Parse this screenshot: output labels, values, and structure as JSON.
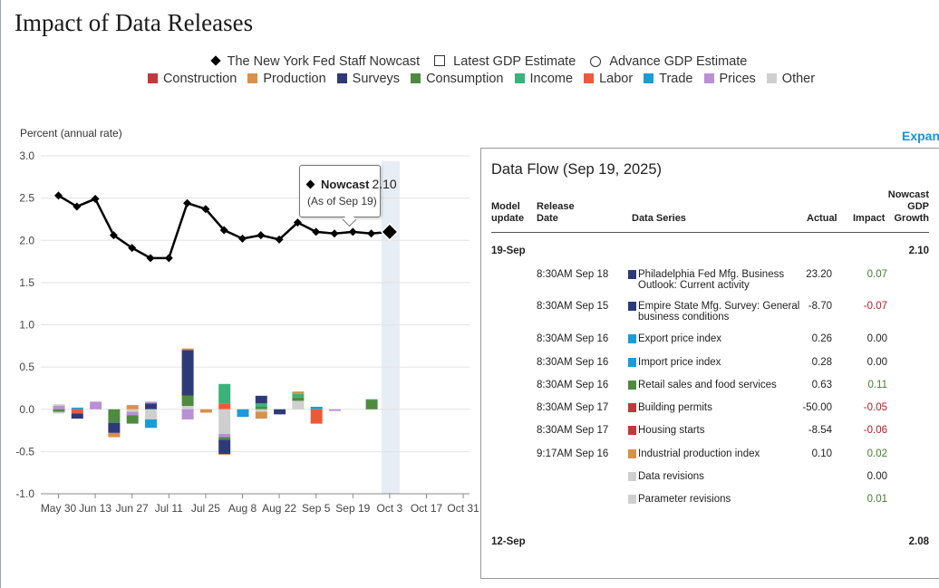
{
  "page": {
    "title": "Impact of Data Releases",
    "expand_label": "Expanc"
  },
  "legend": {
    "series": [
      {
        "label": "The New York Fed Staff Nowcast",
        "icon": "diamond-icon"
      },
      {
        "label": "Latest GDP Estimate",
        "icon": "square-icon"
      },
      {
        "label": "Advance GDP Estimate",
        "icon": "circle-icon"
      }
    ],
    "categories": [
      {
        "label": "Construction",
        "color": "#c0393b"
      },
      {
        "label": "Production",
        "color": "#d9904a"
      },
      {
        "label": "Surveys",
        "color": "#2e3a78"
      },
      {
        "label": "Consumption",
        "color": "#4f8a3f"
      },
      {
        "label": "Income",
        "color": "#3ab27a"
      },
      {
        "label": "Labor",
        "color": "#ec5a3a"
      },
      {
        "label": "Trade",
        "color": "#1b9bd7"
      },
      {
        "label": "Prices",
        "color": "#b98fd6"
      },
      {
        "label": "Other",
        "color": "#cfcfcf"
      }
    ]
  },
  "chart_data": {
    "type": "line+stacked-bar",
    "ylabel": "Percent (annual rate)",
    "ylim": [
      -1.0,
      3.0
    ],
    "yticks": [
      "3.0",
      "2.5",
      "2.0",
      "1.5",
      "1.0",
      "0.5",
      "0.0",
      "-0.5",
      "-1.0"
    ],
    "ytick_values": [
      3.0,
      2.5,
      2.0,
      1.5,
      1.0,
      0.5,
      0.0,
      -0.5,
      -1.0
    ],
    "xlabels": [
      "May 30",
      "Jun 13",
      "Jun 27",
      "Jul 11",
      "Jul 25",
      "Aug 8",
      "Aug 22",
      "Sep 5",
      "Sep 19",
      "Oct 3",
      "Oct 17",
      "Oct 31"
    ],
    "grid": true,
    "highlight_week": 18,
    "nowcast_weeks": [
      0,
      1,
      2,
      3,
      4,
      5,
      6,
      7,
      8,
      9,
      10,
      11,
      12,
      13,
      14,
      15,
      16,
      17,
      18
    ],
    "nowcast_values": [
      2.53,
      2.4,
      2.49,
      2.06,
      1.91,
      1.79,
      1.79,
      2.44,
      2.37,
      2.12,
      2.02,
      2.06,
      2.01,
      2.21,
      2.1,
      2.08,
      2.1,
      2.08,
      2.1
    ],
    "bars": [
      {
        "week": 0,
        "segments": [
          [
            "Prices",
            0.04
          ],
          [
            "Other",
            0.02
          ],
          [
            "Consumption",
            -0.03
          ],
          [
            "Other",
            -0.02
          ]
        ]
      },
      {
        "week": 1,
        "segments": [
          [
            "Trade",
            0.02
          ],
          [
            "Labor",
            -0.05
          ],
          [
            "Surveys",
            -0.06
          ]
        ]
      },
      {
        "week": 2,
        "segments": [
          [
            "Prices",
            0.09
          ]
        ]
      },
      {
        "week": 3,
        "segments": [
          [
            "Consumption",
            -0.16
          ],
          [
            "Surveys",
            -0.12
          ],
          [
            "Production",
            -0.05
          ]
        ]
      },
      {
        "week": 4,
        "segments": [
          [
            "Production",
            0.05
          ],
          [
            "Other",
            -0.03
          ],
          [
            "Prices",
            -0.04
          ],
          [
            "Consumption",
            -0.1
          ]
        ]
      },
      {
        "week": 5,
        "segments": [
          [
            "Surveys",
            0.07
          ],
          [
            "Prices",
            0.02
          ],
          [
            "Other",
            -0.12
          ],
          [
            "Trade",
            -0.1
          ]
        ]
      },
      {
        "week": 7,
        "segments": [
          [
            "Other",
            0.04
          ],
          [
            "Consumption",
            0.12
          ],
          [
            "Surveys",
            0.54
          ],
          [
            "Production",
            0.02
          ],
          [
            "Prices",
            -0.12
          ]
        ]
      },
      {
        "week": 8,
        "segments": [
          [
            "Production",
            -0.04
          ]
        ]
      },
      {
        "week": 9,
        "segments": [
          [
            "Labor",
            0.07
          ],
          [
            "Income",
            0.23
          ],
          [
            "Other",
            -0.29
          ],
          [
            "Prices",
            -0.04
          ],
          [
            "Consumption",
            -0.03
          ],
          [
            "Surveys",
            -0.17
          ],
          [
            "Production",
            -0.01
          ]
        ]
      },
      {
        "week": 10,
        "segments": [
          [
            "Trade",
            -0.09
          ]
        ]
      },
      {
        "week": 11,
        "segments": [
          [
            "Consumption",
            0.03
          ],
          [
            "Income",
            0.04
          ],
          [
            "Surveys",
            0.09
          ],
          [
            "Other",
            -0.03
          ],
          [
            "Production",
            -0.08
          ]
        ]
      },
      {
        "week": 12,
        "segments": [
          [
            "Surveys",
            -0.06
          ]
        ]
      },
      {
        "week": 13,
        "segments": [
          [
            "Other",
            0.1
          ],
          [
            "Consumption",
            0.04
          ],
          [
            "Income",
            0.04
          ],
          [
            "Production",
            0.03
          ]
        ]
      },
      {
        "week": 14,
        "segments": [
          [
            "Trade",
            0.03
          ],
          [
            "Labor",
            -0.17
          ]
        ]
      },
      {
        "week": 15,
        "segments": [
          [
            "Prices",
            -0.02
          ]
        ]
      },
      {
        "week": 17,
        "segments": [
          [
            "Consumption",
            0.11
          ],
          [
            "Income",
            0.01
          ]
        ]
      }
    ],
    "tooltip": {
      "label": "Nowcast",
      "value": "2.10",
      "sub": "(As of Sep 19)"
    }
  },
  "data_flow": {
    "title": "Data Flow (Sep 19, 2025)",
    "headers": {
      "model_update_1": "Model",
      "model_update_2": "update",
      "release_date_1": "Release",
      "release_date_2": "Date",
      "data_series": "Data Series",
      "actual": "Actual",
      "impact": "Impact",
      "nowcast_1": "Nowcast",
      "nowcast_2": "GDP",
      "nowcast_3": "Growth"
    },
    "group_top": {
      "label": "19-Sep",
      "nowcast": "2.10"
    },
    "rows": [
      {
        "time": "8:30AM Sep 18",
        "series": "Philadelphia Fed Mfg. Business Outlook: Current activity",
        "actual": "23.20",
        "impact": "0.07",
        "sign": "pos",
        "color": "#2e3a78"
      },
      {
        "time": "8:30AM Sep 15",
        "series": "Empire State Mfg. Survey: General business conditions",
        "actual": "-8.70",
        "impact": "-0.07",
        "sign": "neg",
        "color": "#2e3a78"
      },
      {
        "time": "8:30AM Sep 16",
        "series": "Export price index",
        "actual": "0.26",
        "impact": "0.00",
        "sign": "zero",
        "color": "#1b9bd7"
      },
      {
        "time": "8:30AM Sep 16",
        "series": "Import price index",
        "actual": "0.28",
        "impact": "0.00",
        "sign": "zero",
        "color": "#1b9bd7"
      },
      {
        "time": "8:30AM Sep 16",
        "series": "Retail sales and food services",
        "actual": "0.63",
        "impact": "0.11",
        "sign": "pos",
        "color": "#4f8a3f"
      },
      {
        "time": "8:30AM Sep 17",
        "series": "Building permits",
        "actual": "-50.00",
        "impact": "-0.05",
        "sign": "neg",
        "color": "#c0393b"
      },
      {
        "time": "8:30AM Sep 17",
        "series": "Housing starts",
        "actual": "-8.54",
        "impact": "-0.06",
        "sign": "neg",
        "color": "#c0393b"
      },
      {
        "time": "9:17AM Sep 16",
        "series": "Industrial production index",
        "actual": "0.10",
        "impact": "0.02",
        "sign": "pos",
        "color": "#d9904a"
      },
      {
        "time": "",
        "series": "Data revisions",
        "actual": "",
        "impact": "0.00",
        "sign": "zero",
        "color": "#cfcfcf"
      },
      {
        "time": "",
        "series": "Parameter revisions",
        "actual": "",
        "impact": "0.01",
        "sign": "pos",
        "color": "#cfcfcf"
      }
    ],
    "group_bottom": {
      "label": "12-Sep",
      "nowcast": "2.08"
    }
  }
}
